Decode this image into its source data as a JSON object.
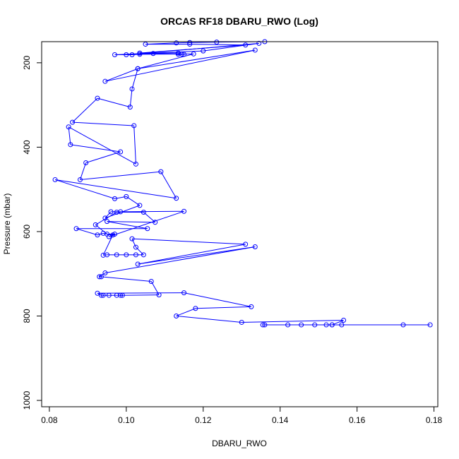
{
  "chart_data": {
    "type": "line",
    "title": "ORCAS RF18 DBARU_RWO (Log)",
    "xlabel": "DBARU_RWO",
    "ylabel": "Pressure (mbar)",
    "xlim": [
      0.078,
      0.181
    ],
    "ylim": [
      1015,
      150
    ],
    "y_axis_inverted": true,
    "x_ticks": [
      "0.08",
      "0.10",
      "0.12",
      "0.14",
      "0.16",
      "0.18"
    ],
    "y_ticks": [
      "200",
      "400",
      "600",
      "800",
      "1000"
    ],
    "grid": false,
    "legend": "none",
    "color": "#0000ff",
    "marker": "open-circle",
    "points": [
      {
        "x": 0.179,
        "y": 821
      },
      {
        "x": 0.172,
        "y": 821
      },
      {
        "x": 0.156,
        "y": 821
      },
      {
        "x": 0.1535,
        "y": 821
      },
      {
        "x": 0.152,
        "y": 821
      },
      {
        "x": 0.149,
        "y": 821
      },
      {
        "x": 0.1455,
        "y": 821
      },
      {
        "x": 0.142,
        "y": 821
      },
      {
        "x": 0.136,
        "y": 821
      },
      {
        "x": 0.1355,
        "y": 821
      },
      {
        "x": 0.1535,
        "y": 821
      },
      {
        "x": 0.1565,
        "y": 810
      },
      {
        "x": 0.13,
        "y": 815
      },
      {
        "x": 0.113,
        "y": 800
      },
      {
        "x": 0.118,
        "y": 782
      },
      {
        "x": 0.1325,
        "y": 778
      },
      {
        "x": 0.115,
        "y": 745
      },
      {
        "x": 0.0925,
        "y": 746
      },
      {
        "x": 0.0935,
        "y": 751
      },
      {
        "x": 0.094,
        "y": 751
      },
      {
        "x": 0.0955,
        "y": 751
      },
      {
        "x": 0.0975,
        "y": 751
      },
      {
        "x": 0.099,
        "y": 751
      },
      {
        "x": 0.0985,
        "y": 751
      },
      {
        "x": 0.1085,
        "y": 750
      },
      {
        "x": 0.1065,
        "y": 718
      },
      {
        "x": 0.0935,
        "y": 707
      },
      {
        "x": 0.093,
        "y": 707
      },
      {
        "x": 0.0945,
        "y": 698
      },
      {
        "x": 0.1335,
        "y": 636
      },
      {
        "x": 0.103,
        "y": 677
      },
      {
        "x": 0.131,
        "y": 630
      },
      {
        "x": 0.1015,
        "y": 617
      },
      {
        "x": 0.1025,
        "y": 637
      },
      {
        "x": 0.1045,
        "y": 655
      },
      {
        "x": 0.1025,
        "y": 655
      },
      {
        "x": 0.1,
        "y": 655
      },
      {
        "x": 0.0975,
        "y": 655
      },
      {
        "x": 0.095,
        "y": 655
      },
      {
        "x": 0.094,
        "y": 656
      },
      {
        "x": 0.0965,
        "y": 608
      },
      {
        "x": 0.094,
        "y": 604
      },
      {
        "x": 0.0925,
        "y": 608
      },
      {
        "x": 0.087,
        "y": 593
      },
      {
        "x": 0.1055,
        "y": 593
      },
      {
        "x": 0.095,
        "y": 576
      },
      {
        "x": 0.1075,
        "y": 578
      },
      {
        "x": 0.1045,
        "y": 554
      },
      {
        "x": 0.0975,
        "y": 554
      },
      {
        "x": 0.092,
        "y": 584
      },
      {
        "x": 0.095,
        "y": 606
      },
      {
        "x": 0.097,
        "y": 606
      },
      {
        "x": 0.0955,
        "y": 612
      },
      {
        "x": 0.115,
        "y": 552
      },
      {
        "x": 0.0985,
        "y": 553
      },
      {
        "x": 0.096,
        "y": 553
      },
      {
        "x": 0.0945,
        "y": 568
      },
      {
        "x": 0.1035,
        "y": 538
      },
      {
        "x": 0.1,
        "y": 517
      },
      {
        "x": 0.097,
        "y": 522
      },
      {
        "x": 0.0815,
        "y": 477
      },
      {
        "x": 0.113,
        "y": 521
      },
      {
        "x": 0.109,
        "y": 458
      },
      {
        "x": 0.088,
        "y": 477
      },
      {
        "x": 0.0895,
        "y": 437
      },
      {
        "x": 0.0985,
        "y": 411
      },
      {
        "x": 0.0855,
        "y": 394
      },
      {
        "x": 0.085,
        "y": 352
      },
      {
        "x": 0.1025,
        "y": 440
      },
      {
        "x": 0.102,
        "y": 349
      },
      {
        "x": 0.086,
        "y": 341
      },
      {
        "x": 0.0925,
        "y": 284
      },
      {
        "x": 0.101,
        "y": 305
      },
      {
        "x": 0.1015,
        "y": 262
      },
      {
        "x": 0.103,
        "y": 214
      },
      {
        "x": 0.1335,
        "y": 170
      },
      {
        "x": 0.0945,
        "y": 244
      },
      {
        "x": 0.103,
        "y": 214
      },
      {
        "x": 0.1175,
        "y": 179
      },
      {
        "x": 0.1035,
        "y": 180
      },
      {
        "x": 0.1015,
        "y": 181
      },
      {
        "x": 0.097,
        "y": 181
      },
      {
        "x": 0.12,
        "y": 172
      },
      {
        "x": 0.1345,
        "y": 154
      },
      {
        "x": 0.1,
        "y": 181
      },
      {
        "x": 0.107,
        "y": 178
      },
      {
        "x": 0.115,
        "y": 180
      },
      {
        "x": 0.1135,
        "y": 180
      },
      {
        "x": 0.1145,
        "y": 180
      },
      {
        "x": 0.1135,
        "y": 177
      },
      {
        "x": 0.1035,
        "y": 177
      },
      {
        "x": 0.131,
        "y": 158
      },
      {
        "x": 0.1165,
        "y": 156
      },
      {
        "x": 0.105,
        "y": 156
      },
      {
        "x": 0.113,
        "y": 153
      },
      {
        "x": 0.1165,
        "y": 152
      },
      {
        "x": 0.1235,
        "y": 151
      },
      {
        "x": 0.136,
        "y": 150
      }
    ]
  }
}
